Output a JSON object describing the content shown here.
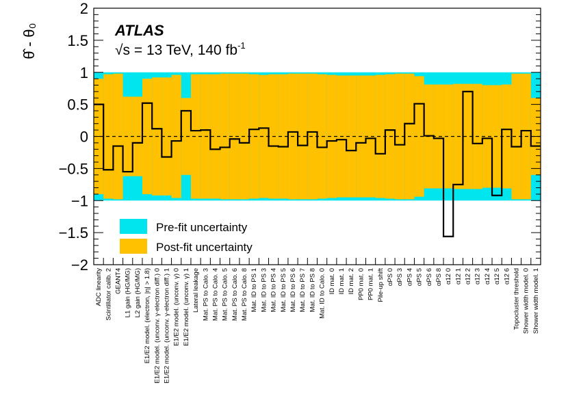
{
  "chart_data": {
    "type": "bar",
    "experiment_label": "ATLAS",
    "energy_label": "√s = 13 TeV, 140 fb",
    "energy_label_sup": "-1",
    "ylabel": "θ̂ - θ₀",
    "ylim": [
      -2,
      2
    ],
    "yticks": [
      "2",
      "1.5",
      "1",
      "0.5",
      "0",
      "−0.5",
      "−1",
      "−1.5",
      "−2"
    ],
    "ytick_values": [
      2,
      1.5,
      1,
      0.5,
      0,
      -0.5,
      -1,
      -1.5,
      -2
    ],
    "legend": {
      "placement": "bottom-left",
      "prefit_label": "Pre-fit uncertainty",
      "postfit_label": "Post-fit uncertainty"
    },
    "colors": {
      "prefit": "#00e5ee",
      "postfit": "#ffc100",
      "line": "#000000"
    },
    "categories": [
      "ADC linearity",
      "Scintillator calib. 2",
      "GEANT4",
      "L1 gain (HG/MG)",
      "L2 gain (HG/MG)",
      "E1/E2 model. (electron, |η| > 1.8)",
      "E1/E2 model. (unconv. γ-electron diff.) 0",
      "E1/E2 model. (unconv. γ-electron diff.) 1",
      "E1/E2 model. (unconv. γ) 0",
      "E1/E2 model. (unconv. γ) 1",
      "Lateral leakage",
      "Mat. PS to Calo. 3",
      "Mat. PS to Calo. 4",
      "Mat. PS to Calo. 5",
      "Mat. PS to Calo. 6",
      "Mat. PS to Calo. 8",
      "Mat. ID to PS 1",
      "Mat. ID to PS 3",
      "Mat. ID to PS 4",
      "Mat. ID to PS 5",
      "Mat. ID to PS 6",
      "Mat. ID to PS 7",
      "Mat. ID to PS 8",
      "Mat. ID to Calo. 0",
      "ID mat. 0",
      "ID mat. 1",
      "ID mat. 2",
      "PP0 mat. 0",
      "PP0 mat. 1",
      "Pile-up shift",
      "αPS 0",
      "αPS 3",
      "αPS 4",
      "αPS 5",
      "αPS 6",
      "αPS 8",
      "α12 0",
      "α12 1",
      "α12 2",
      "α12 3",
      "α12 4",
      "α12 5",
      "α12 6",
      "Topocluster threshold",
      "Shower width model. 0",
      "Shower width model. 1"
    ],
    "values": [
      0.5,
      -0.52,
      -0.15,
      -0.55,
      -0.1,
      0.52,
      0.12,
      -0.32,
      -0.07,
      0.4,
      0.09,
      0.1,
      -0.2,
      -0.17,
      -0.04,
      -0.1,
      0.11,
      0.13,
      -0.15,
      -0.16,
      0.07,
      -0.14,
      0.07,
      -0.17,
      -0.07,
      -0.05,
      -0.22,
      -0.1,
      -0.03,
      -0.27,
      0.1,
      -0.13,
      0.2,
      0.51,
      0.01,
      -0.03,
      -1.56,
      -0.75,
      0.7,
      -0.11,
      -0.03,
      -0.92,
      0.11,
      -0.16,
      0.09,
      -0.15
    ],
    "postfit_errors": [
      0.9,
      0.97,
      0.98,
      0.62,
      0.62,
      0.9,
      0.92,
      0.92,
      0.96,
      0.6,
      0.97,
      0.97,
      0.97,
      0.98,
      0.98,
      0.98,
      0.97,
      0.96,
      0.97,
      0.97,
      0.98,
      0.98,
      0.98,
      0.97,
      0.96,
      0.95,
      0.95,
      0.95,
      0.95,
      0.96,
      0.97,
      0.98,
      0.98,
      0.94,
      0.81,
      0.81,
      0.81,
      0.82,
      0.82,
      0.82,
      0.8,
      0.8,
      0.81,
      0.98,
      0.98,
      0.6
    ],
    "prefit_errors": 1.0
  }
}
